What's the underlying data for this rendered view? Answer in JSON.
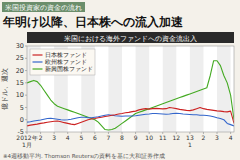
{
  "chart_data": {
    "type": "line",
    "title": "年明け以降、日本株への流入加速",
    "subtitle": "米国における海外ファンドへの資金流出入",
    "y_label": "億ドル、週次",
    "annotations": [
      "米国投資家の資金の流れ",
      "※4週移動平均. Thomson Reutersの資料を基に大和証券作成"
    ],
    "categories": [
      "2012年\n1月",
      null,
      null,
      null,
      "2",
      null,
      null,
      null,
      "3",
      null,
      null,
      null,
      "4",
      null,
      null,
      null,
      "5",
      null,
      null,
      null,
      "6",
      null,
      null,
      null,
      "7",
      null,
      null,
      null,
      "8",
      null,
      null,
      null,
      "9",
      null,
      null,
      null,
      "10",
      null,
      null,
      null,
      "11",
      null,
      null,
      null,
      "12",
      null,
      null,
      null,
      "13\n1",
      null,
      null,
      null,
      "2",
      null,
      null,
      null,
      "3",
      null,
      null,
      null,
      "4",
      null
    ],
    "series": [
      {
        "name": "日本株ファンド",
        "color": "#cc2222",
        "values": [
          -2.5,
          -2.2,
          -2.0,
          -1.8,
          -1.5,
          -1.3,
          -1.0,
          -0.8,
          -0.6,
          -0.5,
          -0.8,
          -1.2,
          -1.5,
          -1.8,
          -2.0,
          -1.5,
          -1.0,
          -0.5,
          0.0,
          0.3,
          0.5,
          0.8,
          1.0,
          1.3,
          1.5,
          1.8,
          2.0,
          2.3,
          2.5,
          2.8,
          3.0,
          3.3,
          3.5,
          4.0,
          4.3,
          4.5,
          4.3,
          4.5,
          4.6,
          4.5,
          4.4,
          4.5,
          5.0,
          4.8,
          4.5,
          4.2,
          4.0,
          3.8,
          3.7,
          4.0,
          4.5,
          5.0,
          4.5,
          4.2,
          4.0,
          3.8,
          3.6,
          3.5,
          3.3,
          3.2,
          3.5,
          -1.5
        ]
      },
      {
        "name": "欧州株ファンド",
        "color": "#3366cc",
        "values": [
          -1.0,
          -0.8,
          -0.5,
          -0.3,
          -0.1,
          0.2,
          0.5,
          0.6,
          0.4,
          0.2,
          0.0,
          -0.1,
          0.0,
          0.2,
          0.5,
          0.8,
          1.0,
          1.0,
          0.8,
          0.8,
          1.0,
          1.2,
          1.5,
          1.8,
          2.0,
          1.8,
          1.6,
          1.5,
          1.4,
          1.5,
          1.5,
          1.5,
          1.6,
          1.8,
          2.0,
          2.2,
          2.3,
          2.5,
          2.5,
          2.4,
          2.3,
          2.2,
          2.3,
          2.5,
          2.6,
          2.5,
          2.3,
          2.2,
          2.1,
          2.0,
          2.0,
          1.8,
          1.8,
          1.7,
          1.5,
          1.2,
          0.8,
          0.5,
          0.0,
          -1.5,
          -2.0,
          -2.5
        ]
      },
      {
        "name": "新興国株ファンド",
        "color": "#44aa22",
        "values": [
          15.0,
          15.5,
          16.0,
          15.5,
          14.0,
          12.0,
          10.0,
          8.0,
          6.5,
          5.5,
          5.0,
          4.5,
          4.0,
          3.5,
          3.0,
          2.5,
          2.0,
          1.5,
          1.0,
          0.5,
          0.0,
          -1.0,
          -2.5,
          -4.0,
          -4.2,
          -4.0,
          -3.5,
          -2.5,
          -1.5,
          -0.5,
          0.5,
          1.5,
          2.5,
          3.0,
          3.5,
          4.0,
          4.5,
          5.0,
          5.5,
          6.0,
          6.5,
          7.0,
          7.5,
          8.0,
          8.5,
          9.0,
          9.5,
          10.0,
          10.5,
          11.0,
          11.5,
          12.0,
          12.5,
          13.0,
          18.0,
          24.0,
          24.0,
          22.0,
          18.0,
          15.0,
          10.0,
          0.0
        ]
      }
    ],
    "ylim": [
      -5,
      30
    ],
    "yticks": [
      -5,
      0,
      5,
      10,
      15,
      20,
      25,
      30
    ],
    "grid": false,
    "legend": "upper left"
  }
}
